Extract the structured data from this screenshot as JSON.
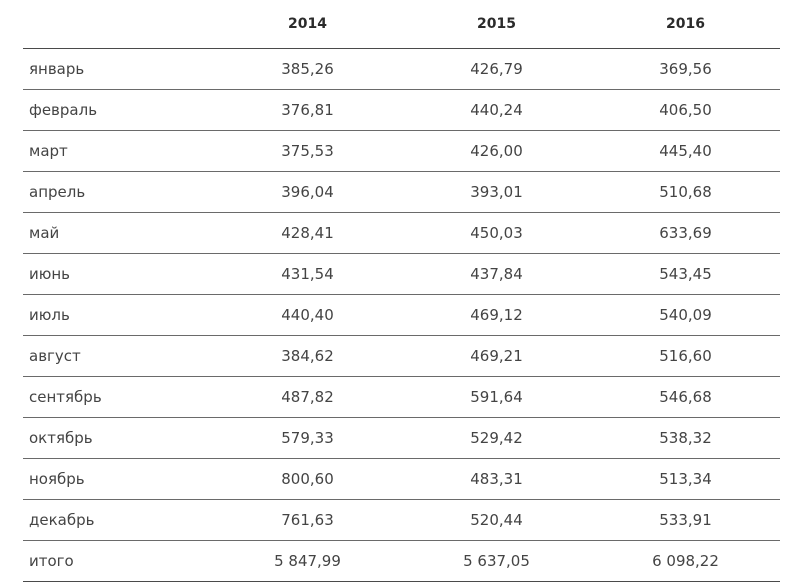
{
  "table": {
    "headers": [
      "",
      "2014",
      "2015",
      "2016"
    ],
    "rows": [
      {
        "label": "январь",
        "values": [
          "385,26",
          "426,79",
          "369,56"
        ]
      },
      {
        "label": "февраль",
        "values": [
          "376,81",
          "440,24",
          "406,50"
        ]
      },
      {
        "label": "март",
        "values": [
          "375,53",
          "426,00",
          "445,40"
        ]
      },
      {
        "label": "апрель",
        "values": [
          "396,04",
          "393,01",
          "510,68"
        ]
      },
      {
        "label": "май",
        "values": [
          "428,41",
          "450,03",
          "633,69"
        ]
      },
      {
        "label": "июнь",
        "values": [
          "431,54",
          "437,84",
          "543,45"
        ]
      },
      {
        "label": "июль",
        "values": [
          "440,40",
          "469,12",
          "540,09"
        ]
      },
      {
        "label": "август",
        "values": [
          "384,62",
          "469,21",
          "516,60"
        ]
      },
      {
        "label": "сентябрь",
        "values": [
          "487,82",
          "591,64",
          "546,68"
        ]
      },
      {
        "label": "октябрь",
        "values": [
          "579,33",
          "529,42",
          "538,32"
        ]
      },
      {
        "label": "ноябрь",
        "values": [
          "800,60",
          "483,31",
          "513,34"
        ]
      },
      {
        "label": "декабрь",
        "values": [
          "761,63",
          "520,44",
          "533,91"
        ]
      },
      {
        "label": "итого",
        "values": [
          "5 847,99",
          "5 637,05",
          "6 098,22"
        ]
      }
    ]
  }
}
